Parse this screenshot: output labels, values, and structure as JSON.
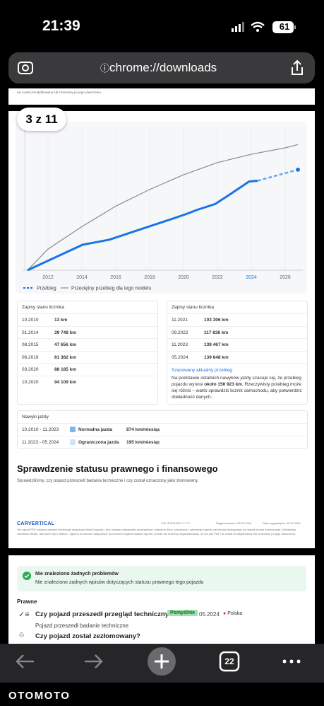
{
  "status": {
    "time": "21:39",
    "battery": "61"
  },
  "url": "chrome://downloads",
  "page1": {
    "top_note": "nie został zmodyfikowany lub zmieniony po jego utworzeniu.",
    "page_badge": "3 z 11"
  },
  "chart": {
    "type": "line",
    "xlim": [
      2010.5,
      2027.05
    ],
    "ylim": [
      0,
      223000
    ],
    "xticks": [
      2012,
      2014,
      2016,
      2018,
      2020,
      2022,
      2024,
      2026
    ],
    "highlight_tick": 2024,
    "series": [
      {
        "name": "Przebieg",
        "color": "#1a73e8",
        "x": [
          2010.79,
          2014.04,
          2015.62,
          2019.46,
          2020.21,
          2020.79,
          2021.87,
          2022.71,
          2023.87,
          2024.37
        ],
        "values": [
          13,
          39748,
          47656,
          81382,
          88185,
          94109,
          103306,
          117836,
          138467,
          139648
        ]
      },
      {
        "name": "Przeciętny przebieg dla tego modelu",
        "color": "#8a8a8a",
        "x": [
          2010.79,
          2012,
          2014,
          2016,
          2018,
          2020,
          2022,
          2024,
          2026,
          2026.75
        ],
        "values": [
          0,
          33000,
          68000,
          100000,
          126000,
          149000,
          168000,
          181000,
          191000,
          196000
        ]
      }
    ],
    "estimate": {
      "x": 2026.75,
      "value": 156923
    }
  },
  "odometer_left": {
    "title": "Zapisy stanu licznika",
    "rows": [
      [
        "10.2010",
        "13 km"
      ],
      [
        "01.2014",
        "39 748 km"
      ],
      [
        "08.2015",
        "47 656 km"
      ],
      [
        "06.2019",
        "81 382 km"
      ],
      [
        "03.2020",
        "88 185 km"
      ],
      [
        "10.2020",
        "94 109 km"
      ]
    ]
  },
  "odometer_right": {
    "title": "Zapisy stanu licznika",
    "rows": [
      [
        "11.2021",
        "103 306 km"
      ],
      [
        "09.2022",
        "117 836 km"
      ],
      [
        "11.2023",
        "138 467 km"
      ],
      [
        "05.2024",
        "139 648 km"
      ]
    ],
    "note_title": "Szacowany aktualny przebieg",
    "note_parts": [
      "Na podstawie ostatnich nawyków jazdy szacuje się, że przebieg pojazdu wynosi ",
      "około 156 923 km.",
      " Rzeczywisty przebieg może się różnić – warto sprawdzić licznik samochodu, aby potwierdzić dokładność danych."
    ]
  },
  "habits": {
    "title": "Nawyki jazdy",
    "rows": [
      [
        "10.2010 - 11.2023",
        "Normalna jazda",
        "874 km/miesiąc"
      ],
      [
        "11.2023 - 05.2024",
        "Ograniczona jazda",
        "195 km/miesiąc"
      ]
    ]
  },
  "legal": {
    "heading": "Sprawdzenie statusu prawnego i finansowego",
    "subtitle": "Sprawdziliśmy, czy pojazd przeszedł badania techniczne i czy został oznaczony jako złomowany."
  },
  "footer": {
    "logo": "CARVERTICAL",
    "vin": "VIN: ZFA31200*********",
    "generated": "Wygenerowano: 03.09.2026",
    "expires": "Data wygaśnięcia: 02.10.2026",
    "disclaimer": "Ten raport PDF zawiera ostatnie informacje dotyczące historii pojazdu. Aby uzyskać najbardziej szczegółowe i aktualne dane, skorzystaj z cyfrowego raportu carVertical dostępnego na naszej stronie internetowej. Dokładamy wszelkich starań, aby dane były rzetelne i zgodne ze stanem faktycznym na moment wygenerowania raportu, jednak nie możemy zagwarantować, że ten plik PDF nie został zmodyfikowany lub zmieniony po jego utworzeniu."
  },
  "page2": {
    "alert_title": "Nie znaleziono żadnych problemów",
    "alert_text": "Nie znaleziono żadnych wpisów dotyczących statusu prawnego tego pojazdu",
    "section": "Prawne",
    "q1": "Czy pojazd przeszedł przegląd techniczny?",
    "q1_badge": "Pomyślnie",
    "q1_date": "05.2024",
    "q1_country": "Polska",
    "q1_detail": "Pojazd przeszedł badanie techniczne",
    "q2": "Czy pojazd został zezłomowany?"
  },
  "toolbar": {
    "tabs": "22"
  },
  "watermark": "OTOMOTO"
}
